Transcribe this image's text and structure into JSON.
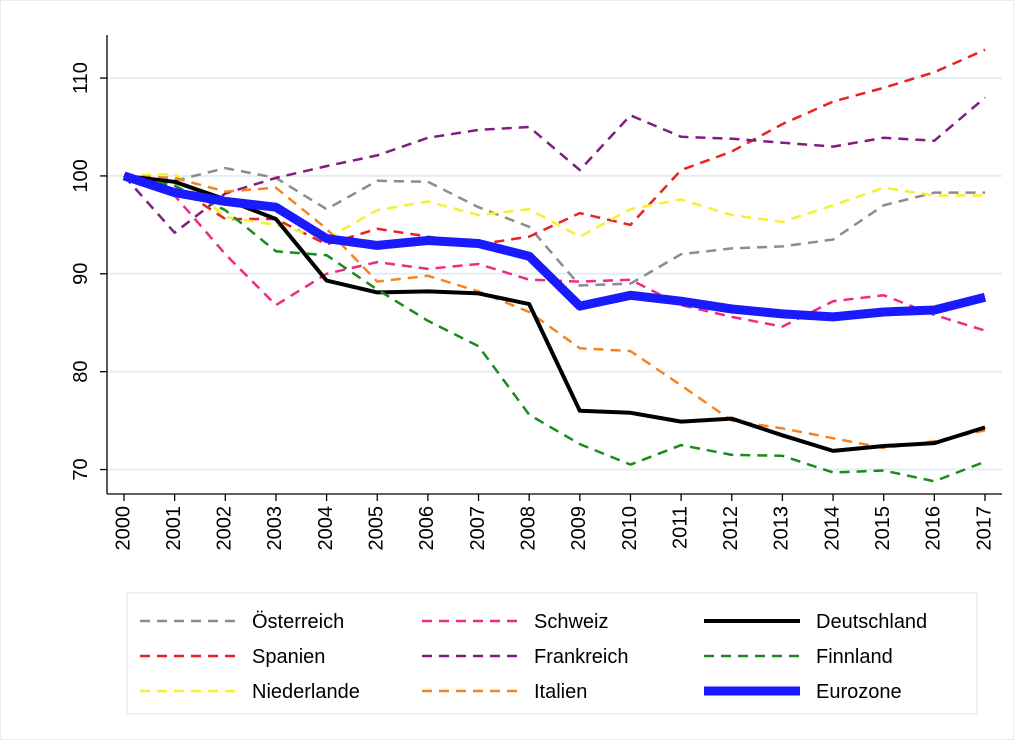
{
  "chart_data": {
    "type": "line",
    "categories": [
      "2000",
      "2001",
      "2002",
      "2003",
      "2004",
      "2005",
      "2006",
      "2007",
      "2008",
      "2009",
      "2010",
      "2011",
      "2012",
      "2013",
      "2014",
      "2015",
      "2016",
      "2017"
    ],
    "ylim": [
      67.5,
      114.4
    ],
    "yticks": [
      70,
      80,
      90,
      100,
      110
    ],
    "grid": true,
    "legend": "bottom",
    "series": [
      {
        "name": "Österreich",
        "color": "#8c8c8c",
        "style": "dashed",
        "line_width": 2.5,
        "values": [
          100,
          99.5,
          100.8,
          99.8,
          96.6,
          99.5,
          99.4,
          96.8,
          94.8,
          88.8,
          89.0,
          92.0,
          92.6,
          92.8,
          93.5,
          97.0,
          98.3,
          98.3
        ]
      },
      {
        "name": "Spanien",
        "color": "#e8231f",
        "style": "dashed",
        "line_width": 2.5,
        "values": [
          100,
          99.0,
          95.6,
          95.6,
          93.0,
          94.6,
          93.8,
          93.0,
          93.8,
          96.2,
          95.0,
          100.6,
          102.5,
          105.3,
          107.6,
          109.0,
          110.6,
          112.9
        ]
      },
      {
        "name": "Niederlande",
        "color": "#f5f032",
        "style": "dashed",
        "line_width": 2.5,
        "values": [
          100,
          100.2,
          95.8,
          95.0,
          93.6,
          96.5,
          97.4,
          96.0,
          96.6,
          93.8,
          96.6,
          97.6,
          96.0,
          95.3,
          97.0,
          98.8,
          98.0,
          98.0
        ]
      },
      {
        "name": "Schweiz",
        "color": "#ee2a84",
        "style": "dashed",
        "line_width": 2.5,
        "values": [
          100,
          98.0,
          92.0,
          86.8,
          90.0,
          91.2,
          90.5,
          91.0,
          89.4,
          89.2,
          89.4,
          86.8,
          85.6,
          84.6,
          87.2,
          87.8,
          85.8,
          84.2
        ]
      },
      {
        "name": "Frankreich",
        "color": "#7f1d7f",
        "style": "dashed",
        "line_width": 2.5,
        "values": [
          100,
          94.2,
          98.2,
          99.8,
          101.0,
          102.1,
          103.9,
          104.7,
          105.0,
          100.6,
          106.2,
          104.0,
          103.8,
          103.4,
          103.0,
          103.9,
          103.6,
          108.0
        ]
      },
      {
        "name": "Italien",
        "color": "#f7831f",
        "style": "dashed",
        "line_width": 2.5,
        "values": [
          100,
          99.8,
          98.4,
          98.8,
          94.6,
          89.2,
          89.8,
          88.2,
          86.1,
          82.4,
          82.1,
          78.6,
          75.0,
          74.2,
          73.2,
          72.2,
          72.9,
          74.0
        ]
      },
      {
        "name": "Deutschland",
        "color": "#000000",
        "style": "solid",
        "line_width": 4,
        "values": [
          100,
          99.4,
          97.6,
          95.6,
          89.3,
          88.1,
          88.2,
          88.0,
          86.9,
          76.0,
          75.8,
          74.9,
          75.2,
          73.5,
          71.9,
          72.4,
          72.7,
          74.3
        ]
      },
      {
        "name": "Finnland",
        "color": "#1a8a1a",
        "style": "dashed",
        "line_width": 2.5,
        "values": [
          100,
          99.0,
          96.5,
          92.3,
          91.9,
          88.4,
          85.2,
          82.6,
          75.6,
          72.6,
          70.5,
          72.5,
          71.5,
          71.4,
          69.7,
          69.9,
          68.8,
          70.8
        ]
      },
      {
        "name": "Eurozone",
        "color": "#1a1aff",
        "style": "solid",
        "line_width": 9,
        "values": [
          100,
          98.3,
          97.4,
          96.8,
          93.6,
          92.9,
          93.4,
          93.1,
          91.8,
          86.7,
          87.8,
          87.2,
          86.4,
          85.9,
          85.6,
          86.1,
          86.3,
          87.6
        ]
      }
    ]
  }
}
